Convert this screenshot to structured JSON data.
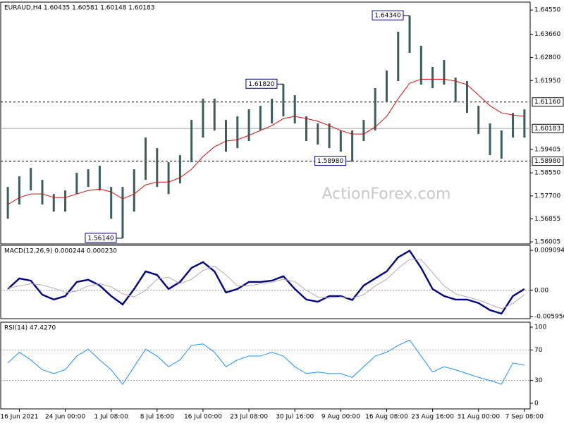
{
  "chart_data": [
    {
      "type": "ohlc",
      "title": "EURAUD,H4  1.60435 1.60581 1.60148 1.60183",
      "watermark": "ActionForex.com",
      "color": "#3d5c5c",
      "high": [
        1.5803,
        1.5842,
        1.5873,
        1.5829,
        1.5777,
        1.579,
        1.5855,
        1.5868,
        1.5881,
        1.5803,
        1.5803,
        1.5868,
        1.5985,
        1.5946,
        1.5894,
        1.592,
        1.605,
        1.6128,
        1.6128,
        1.605,
        1.6063,
        1.6089,
        1.6102,
        1.6128,
        1.6182,
        1.6141,
        1.6063,
        1.6037,
        1.6037,
        1.6011,
        1.6011,
        1.605,
        1.6167,
        1.6232,
        1.6375,
        1.6434,
        1.6323,
        1.6245,
        1.6271,
        1.6206,
        1.6193,
        1.6102,
        1.6037,
        1.6011,
        1.6076,
        1.6089
      ],
      "low": [
        1.5686,
        1.5738,
        1.579,
        1.5738,
        1.5712,
        1.5712,
        1.5777,
        1.5803,
        1.579,
        1.5686,
        1.5614,
        1.5712,
        1.5829,
        1.5803,
        1.5777,
        1.5816,
        1.5894,
        1.5985,
        1.6011,
        1.5933,
        1.5946,
        1.5972,
        1.6011,
        1.6037,
        1.6063,
        1.6037,
        1.5972,
        1.5959,
        1.5946,
        1.5933,
        1.5898,
        1.5972,
        1.6011,
        1.6115,
        1.6193,
        1.6297,
        1.618,
        1.6167,
        1.618,
        1.6115,
        1.6076,
        1.5998,
        1.592,
        1.5907,
        1.5985,
        1.5985
      ],
      "ma": {
        "color": "#d01010",
        "values": [
          1.5738,
          1.5764,
          1.5777,
          1.5777,
          1.5764,
          1.5764,
          1.5777,
          1.579,
          1.5795,
          1.5785,
          1.5759,
          1.5777,
          1.5811,
          1.5821,
          1.5821,
          1.5837,
          1.5868,
          1.5915,
          1.5951,
          1.5972,
          1.5977,
          1.5993,
          1.6011,
          1.6029,
          1.6055,
          1.6063,
          1.6055,
          1.6045,
          1.6029,
          1.6011,
          1.5998,
          1.5998,
          1.6024,
          1.6063,
          1.6128,
          1.6185,
          1.62,
          1.62,
          1.62,
          1.6193,
          1.618,
          1.6141,
          1.6102,
          1.6076,
          1.6068,
          1.6063
        ]
      },
      "ylim": [
        1.5593,
        1.6484
      ],
      "yticks": [
        {
          "value": 1.6455,
          "label": "1.64550"
        },
        {
          "value": 1.6366,
          "label": "1.63660"
        },
        {
          "value": 1.628,
          "label": "1.62800"
        },
        {
          "value": 1.6195,
          "label": "1.61950"
        },
        {
          "value": 1.59405,
          "label": "1.59405"
        },
        {
          "value": 1.5855,
          "label": "1.58550"
        },
        {
          "value": 1.577,
          "label": "1.57700"
        },
        {
          "value": 1.56855,
          "label": "1.56855"
        },
        {
          "value": 1.56005,
          "label": "1.56005"
        }
      ],
      "levels": [
        {
          "value": 1.6116,
          "label": "1.61160",
          "style": "dashed"
        },
        {
          "value": 1.60183,
          "label": "1.60183",
          "style": "solid"
        },
        {
          "value": 1.5898,
          "label": "1.58980",
          "style": "dashed"
        }
      ],
      "annotations": [
        {
          "value": 1.6434,
          "label": "1.64340"
        },
        {
          "value": 1.6182,
          "label": "1.61820"
        },
        {
          "value": 1.5898,
          "label": "1.58980"
        },
        {
          "value": 1.5614,
          "label": "1.56140"
        }
      ]
    },
    {
      "type": "line",
      "title": "MACD(12,26,9) 0.000244 0.000230",
      "series": [
        {
          "color": "#000080",
          "width": 2.4,
          "values": [
            0.0003,
            0.0027,
            0.0022,
            -0.001,
            -0.0021,
            -0.0013,
            0.0019,
            0.0024,
            0.0011,
            -0.0013,
            -0.0032,
            0.0003,
            0.0043,
            0.0035,
            0.0003,
            0.0019,
            0.0051,
            0.0064,
            0.0043,
            -0.0005,
            0.0003,
            0.0019,
            0.0019,
            0.0022,
            0.0032,
            0.0003,
            -0.0021,
            -0.0026,
            -0.0013,
            -0.0013,
            -0.0022,
            0.0011,
            0.0027,
            0.0043,
            0.0075,
            0.009,
            0.0051,
            0.0003,
            -0.0013,
            -0.0021,
            -0.0021,
            -0.0029,
            -0.0045,
            -0.0053,
            -0.0013,
            0.0003
          ]
        },
        {
          "color": "#b8a8b0",
          "width": 1,
          "values": [
            0.0005,
            0.001,
            0.0015,
            0.0012,
            0.0005,
            -0.0005,
            -0.0002,
            0.001,
            0.0015,
            0.0008,
            -0.0008,
            -0.0015,
            0.0,
            0.0025,
            0.003,
            0.0015,
            0.0025,
            0.0045,
            0.0055,
            0.0035,
            0.001,
            0.001,
            0.0015,
            0.0018,
            0.0025,
            0.002,
            0.0,
            -0.0015,
            -0.0018,
            -0.0015,
            -0.0018,
            -0.001,
            0.001,
            0.0025,
            0.005,
            0.007,
            0.007,
            0.004,
            0.001,
            -0.0008,
            -0.0015,
            -0.0022,
            -0.0032,
            -0.0042,
            -0.003,
            -0.001
          ]
        }
      ],
      "ylim": [
        -0.00644,
        0.01022
      ],
      "yticks": [
        0.009094,
        {
          "value": 0,
          "label": "0.00"
        },
        -0.005956
      ],
      "dashed_levels": [
        0
      ]
    },
    {
      "type": "line",
      "title": "RSI(14) 47.4270",
      "series": [
        {
          "color": "#1e90ff",
          "width": 1,
          "values": [
            53,
            67,
            57,
            44,
            39,
            44,
            62,
            71,
            57,
            44,
            25,
            48,
            71,
            62,
            48,
            57,
            76,
            78,
            67,
            48,
            57,
            62,
            62,
            67,
            62,
            48,
            39,
            41,
            39,
            39,
            34,
            48,
            62,
            67,
            76,
            83,
            62,
            41,
            48,
            44,
            39,
            34,
            30,
            25,
            53,
            50
          ]
        }
      ],
      "ylim": [
        -7.4,
        106.5
      ],
      "yticks": [
        100,
        70,
        30,
        0
      ],
      "dashed_levels": [
        70,
        30
      ],
      "categories": [
        null,
        "16 Jun 2021",
        null,
        null,
        null,
        "24 Jun 00:00",
        null,
        null,
        null,
        "1 Jul 08:00",
        null,
        null,
        null,
        "8 Jul 16:00",
        null,
        null,
        null,
        "16 Jul 00:00",
        null,
        null,
        null,
        "23 Jul 08:00",
        null,
        null,
        null,
        "30 Jul 16:00",
        null,
        null,
        null,
        "9 Aug 00:00",
        null,
        null,
        null,
        "16 Aug 08:00",
        null,
        null,
        null,
        "23 Aug 16:00",
        null,
        null,
        null,
        "31 Aug 00:00",
        null,
        null,
        null,
        "7 Sep 08:00"
      ]
    }
  ]
}
